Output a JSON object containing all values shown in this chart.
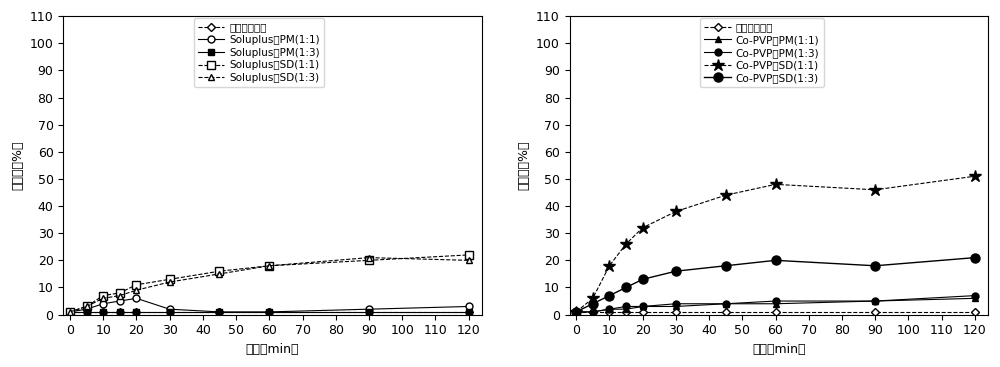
{
  "time": [
    0,
    5,
    10,
    15,
    20,
    30,
    45,
    60,
    90,
    120
  ],
  "left": {
    "crystal": [
      1,
      1,
      1,
      1,
      1,
      1,
      1,
      1,
      1,
      1
    ],
    "soluplus_pm11": [
      1,
      2,
      4,
      5,
      6,
      2,
      1,
      1,
      2,
      3
    ],
    "soluplus_pm13": [
      1,
      1,
      1,
      1,
      1,
      1,
      1,
      1,
      1,
      1
    ],
    "soluplus_sd11": [
      1,
      3,
      7,
      8,
      11,
      13,
      16,
      18,
      20,
      22
    ],
    "soluplus_sd13": [
      1,
      3,
      6,
      7,
      9,
      12,
      15,
      18,
      21,
      20
    ],
    "legend": [
      "晶态呀哚美辛",
      "Soluplus－PM(1:1)",
      "Soluplus－PM(1:3)",
      "Soluplus－SD(1:1)",
      "Soluplus－SD(1:3)"
    ]
  },
  "right": {
    "crystal": [
      1,
      1,
      1,
      1,
      1,
      1,
      1,
      1,
      1,
      1
    ],
    "copvp_pm11": [
      1,
      1,
      2,
      2,
      3,
      3,
      4,
      4,
      5,
      6
    ],
    "copvp_pm13": [
      1,
      1,
      2,
      3,
      3,
      4,
      4,
      5,
      5,
      7
    ],
    "copvp_sd11": [
      1,
      6,
      18,
      26,
      32,
      38,
      44,
      48,
      46,
      51
    ],
    "copvp_sd13": [
      1,
      4,
      7,
      10,
      13,
      16,
      18,
      20,
      18,
      21
    ],
    "legend": [
      "晶态呀哚美辛",
      "Co-PVP－PM(1:1)",
      "Co-PVP－PM(1:3)",
      "Co-PVP－SD(1:1)",
      "Co-PVP－SD(1:3)"
    ]
  },
  "time_points": [
    0,
    5,
    10,
    15,
    20,
    30,
    45,
    60,
    90,
    120
  ],
  "xlabel": "时间（min）",
  "ylabel": "溢出度（%）",
  "ylim": [
    0,
    110
  ],
  "yticks": [
    0,
    10,
    20,
    30,
    40,
    50,
    60,
    70,
    80,
    90,
    100,
    110
  ],
  "xticks": [
    0,
    10,
    20,
    30,
    40,
    50,
    60,
    70,
    80,
    90,
    100,
    110,
    120
  ],
  "fontsize": 9,
  "legend_fontsize": 7.5
}
